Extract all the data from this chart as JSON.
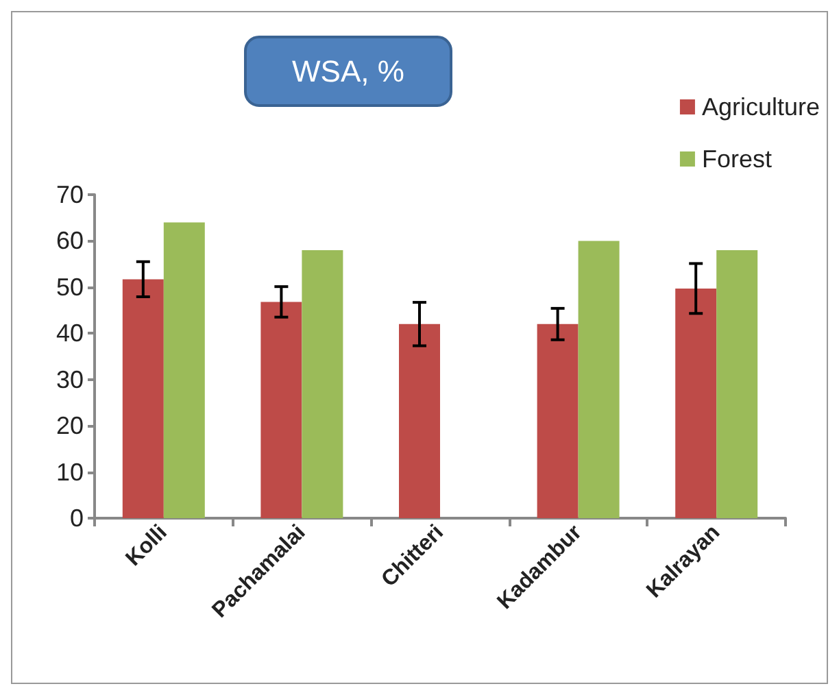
{
  "chart_data": {
    "type": "bar",
    "title": "WSA, %",
    "categories": [
      "Kolli",
      "Pachamalai",
      "Chitteri",
      "Kadambur",
      "Kalrayan"
    ],
    "series": [
      {
        "name": "Agriculture",
        "color": "#be4b48",
        "values": [
          51.7,
          46.8,
          42,
          42,
          49.7
        ],
        "errors": [
          3.8,
          3.3,
          4.7,
          3.4,
          5.4
        ]
      },
      {
        "name": "Forest",
        "color": "#9bbb59",
        "values": [
          64,
          58,
          null,
          60,
          58
        ]
      }
    ],
    "ylim": [
      0,
      70
    ],
    "yticks": [
      0,
      10,
      20,
      30,
      40,
      50,
      60,
      70
    ],
    "grid": false,
    "legend": "top right"
  }
}
